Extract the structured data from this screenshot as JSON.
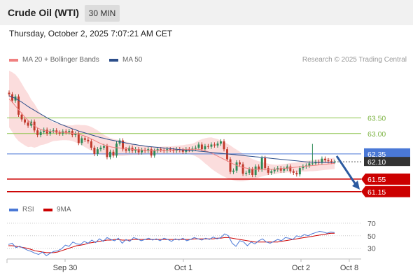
{
  "header": {
    "instrument": "Crude Oil (WTI)",
    "interval": "30 MIN"
  },
  "timestamp": "Thursday, October 2, 2025 7:07:21 AM CET",
  "credit": "Research © 2025 Trading Central",
  "colors": {
    "ma20": "#f08080",
    "ma50": "#2c4e8a",
    "band_fill": "#fbd9d9",
    "candle_up": "#2e8b57",
    "candle_down": "#c0392b",
    "support": "#cc0000",
    "resistance": "#8bc34a",
    "pivot": "#4a78d6",
    "rsi": "#4a78d6",
    "rsi_ma": "#cc0000",
    "arrow": "#2c5aa0"
  },
  "chart_data": [
    {
      "type": "candlestick",
      "legend": [
        {
          "name": "MA 20 + Bollinger Bands",
          "color": "#f08080"
        },
        {
          "name": "MA 50",
          "color": "#2c4e8a"
        }
      ],
      "x_ticks": [
        "Sep 30",
        "Oct 1",
        "Oct 2",
        "Oct 8"
      ],
      "ylim": [
        60.9,
        64.8
      ],
      "levels": [
        {
          "label": "63.50",
          "value": 63.5,
          "kind": "resistance"
        },
        {
          "label": "63.00",
          "value": 63.0,
          "kind": "resistance"
        },
        {
          "label": "62.35",
          "value": 62.35,
          "kind": "pivot"
        },
        {
          "label": "62.10",
          "value": 62.1,
          "kind": "last"
        },
        {
          "label": "61.55",
          "value": 61.55,
          "kind": "support"
        },
        {
          "label": "61.15",
          "value": 61.15,
          "kind": "support"
        }
      ],
      "closes": [
        64.25,
        64.05,
        64.18,
        63.6,
        63.45,
        63.35,
        63.25,
        63.38,
        63.1,
        62.95,
        63.05,
        63.12,
        63.0,
        63.08,
        63.1,
        63.03,
        63.0,
        63.07,
        63.04,
        63.08,
        62.95,
        63.0,
        62.7,
        62.85,
        62.8,
        62.75,
        62.55,
        62.35,
        62.5,
        62.55,
        62.6,
        62.25,
        62.42,
        62.3,
        62.68,
        62.78,
        62.5,
        62.45,
        62.55,
        62.45,
        62.5,
        62.4,
        62.48,
        62.45,
        62.5,
        62.3,
        62.45,
        62.5,
        62.48,
        62.45,
        62.5,
        62.48,
        62.45,
        62.5,
        62.47,
        62.42,
        62.5,
        62.48,
        62.52,
        62.55,
        62.65,
        62.5,
        62.6,
        62.58,
        62.65,
        62.62,
        62.68,
        62.75,
        62.5,
        62.18,
        61.78,
        61.82,
        62.08,
        62.02,
        61.72,
        61.75,
        61.86,
        61.68,
        61.95,
        61.85,
        62.22,
        61.9,
        61.75,
        61.8,
        61.85,
        61.9,
        61.82,
        61.88,
        61.95,
        61.8,
        61.75,
        61.7,
        61.9,
        61.95,
        61.98,
        62.05,
        62.05,
        62.1,
        62.08,
        62.2,
        62.15,
        62.12,
        62.1,
        62.1
      ],
      "ma50": [
        64.2,
        64.16,
        64.12,
        64.06,
        64.0,
        63.93,
        63.86,
        63.8,
        63.74,
        63.68,
        63.62,
        63.56,
        63.5,
        63.45,
        63.4,
        63.36,
        63.31,
        63.27,
        63.23,
        63.19,
        63.15,
        63.12,
        63.08,
        63.05,
        63.02,
        62.99,
        62.96,
        62.93,
        62.9,
        62.87,
        62.85,
        62.82,
        62.8,
        62.78,
        62.76,
        62.74,
        62.72,
        62.7,
        62.68,
        62.66,
        62.65,
        62.63,
        62.62,
        62.6,
        62.59,
        62.58,
        62.57,
        62.56,
        62.55,
        62.54,
        62.53,
        62.52,
        62.51,
        62.5,
        62.49,
        62.48,
        62.47,
        62.46,
        62.45,
        62.45,
        62.44,
        62.43,
        62.42,
        62.41,
        62.4,
        62.39,
        62.38,
        62.37,
        62.36,
        62.35,
        62.34,
        62.33,
        62.32,
        62.31,
        62.3,
        62.29,
        62.28,
        62.27,
        62.26,
        62.25,
        62.24,
        62.23,
        62.22,
        62.21,
        62.2,
        62.19,
        62.18,
        62.17,
        62.16,
        62.15,
        62.14,
        62.13,
        62.12,
        62.11,
        62.1,
        62.09,
        62.09,
        62.08,
        62.08,
        62.08,
        62.08,
        62.08,
        62.08,
        62.08
      ],
      "ma20": [
        64.1,
        64.0,
        63.88,
        63.76,
        63.64,
        63.52,
        63.42,
        63.33,
        63.25,
        63.18,
        63.13,
        63.1,
        63.08,
        63.07,
        63.06,
        63.05,
        63.04,
        63.04,
        63.03,
        63.02,
        63.01,
        63.0,
        62.98,
        62.95,
        62.92,
        62.88,
        62.83,
        62.78,
        62.73,
        62.68,
        62.64,
        62.61,
        62.58,
        62.56,
        62.55,
        62.54,
        62.53,
        62.52,
        62.51,
        62.5,
        62.49,
        62.48,
        62.48,
        62.47,
        62.47,
        62.46,
        62.46,
        62.46,
        62.46,
        62.47,
        62.47,
        62.47,
        62.48,
        62.48,
        62.49,
        62.49,
        62.5,
        62.5,
        62.5,
        62.5,
        62.5,
        62.48,
        62.45,
        62.42,
        62.38,
        62.33,
        62.28,
        62.23,
        62.18,
        62.13,
        62.08,
        62.03,
        61.99,
        61.95,
        61.92,
        61.9,
        61.88,
        61.87,
        61.86,
        61.86,
        61.86,
        61.86,
        61.86,
        61.86,
        61.86,
        61.87,
        61.88,
        61.89,
        61.9,
        61.91,
        61.92,
        61.93,
        61.94,
        61.95,
        61.96,
        61.97,
        61.98,
        61.99,
        62.0,
        62.01,
        62.02,
        62.03,
        62.04,
        62.05
      ],
      "band_width": [
        0.9,
        0.95,
        1.0,
        1.0,
        0.95,
        0.9,
        0.85,
        0.75,
        0.7,
        0.6,
        0.5,
        0.45,
        0.4,
        0.35,
        0.3,
        0.28,
        0.26,
        0.25,
        0.24,
        0.24,
        0.25,
        0.28,
        0.3,
        0.32,
        0.35,
        0.37,
        0.38,
        0.38,
        0.37,
        0.35,
        0.32,
        0.3,
        0.28,
        0.27,
        0.26,
        0.25,
        0.24,
        0.22,
        0.2,
        0.18,
        0.17,
        0.16,
        0.15,
        0.14,
        0.13,
        0.13,
        0.12,
        0.12,
        0.12,
        0.12,
        0.12,
        0.12,
        0.12,
        0.13,
        0.13,
        0.14,
        0.15,
        0.16,
        0.18,
        0.22,
        0.28,
        0.34,
        0.4,
        0.45,
        0.5,
        0.52,
        0.54,
        0.55,
        0.55,
        0.55,
        0.54,
        0.52,
        0.5,
        0.47,
        0.44,
        0.4,
        0.36,
        0.32,
        0.29,
        0.26,
        0.23,
        0.2,
        0.18,
        0.16,
        0.15,
        0.14,
        0.14,
        0.14,
        0.14,
        0.15,
        0.15,
        0.15,
        0.16,
        0.16,
        0.17,
        0.17,
        0.18,
        0.18,
        0.18,
        0.18,
        0.18,
        0.18,
        0.18,
        0.18
      ],
      "forecast": {
        "from": 62.35,
        "to": 61.55
      }
    },
    {
      "type": "line",
      "legend": [
        {
          "name": "RSI",
          "color": "#4a78d6"
        },
        {
          "name": "9MA",
          "color": "#cc0000"
        }
      ],
      "ylim": [
        15,
        80
      ],
      "y_ticks": [
        70,
        50,
        30
      ],
      "reference_lines": [
        70,
        50,
        30
      ],
      "series": [
        {
          "name": "RSI",
          "values": [
            36,
            38,
            31,
            33,
            30,
            27,
            25,
            22,
            20,
            24,
            18,
            22,
            25,
            26,
            29,
            35,
            33,
            40,
            37,
            36,
            41,
            38,
            43,
            39,
            45,
            41,
            47,
            44,
            42,
            46,
            38,
            44,
            41,
            47,
            45,
            42,
            44,
            46,
            43,
            45,
            42,
            46,
            44,
            41,
            45,
            43,
            46,
            42,
            44,
            47,
            45,
            43,
            46,
            44,
            48,
            45,
            47,
            53,
            50,
            38,
            33,
            42,
            40,
            34,
            40,
            37,
            42,
            45,
            40,
            38,
            41,
            44,
            42,
            47,
            46,
            44,
            50,
            48,
            52,
            50,
            53,
            55,
            57,
            56,
            54,
            56,
            55
          ]
        },
        {
          "name": "9MA",
          "values": [
            34,
            34,
            33,
            32,
            31,
            30,
            28,
            26,
            25,
            24,
            23,
            23,
            23,
            24,
            26,
            28,
            30,
            32,
            34,
            35,
            36,
            38,
            39,
            40,
            41,
            42,
            43,
            43,
            44,
            44,
            43,
            43,
            43,
            44,
            44,
            44,
            44,
            44,
            44,
            44,
            44,
            44,
            44,
            44,
            44,
            44,
            44,
            44,
            44,
            45,
            45,
            45,
            45,
            45,
            45,
            46,
            46,
            47,
            47,
            46,
            45,
            44,
            43,
            42,
            41,
            40,
            40,
            40,
            40,
            40,
            40,
            40,
            41,
            42,
            43,
            44,
            45,
            46,
            47,
            48,
            49,
            50,
            51,
            52,
            53,
            54,
            54
          ]
        }
      ]
    }
  ]
}
